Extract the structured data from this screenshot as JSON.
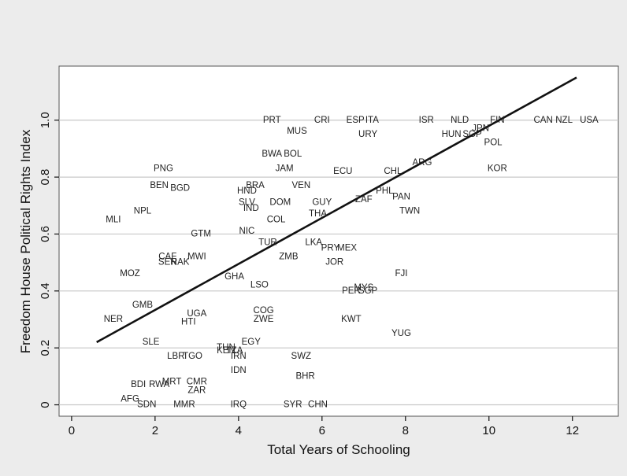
{
  "chart_data": {
    "type": "scatter",
    "title": "",
    "xlabel": "Total Years of Schooling",
    "ylabel": "Freedom House Political Rights Index",
    "xlim": [
      -0.3,
      13.1
    ],
    "ylim": [
      -0.04,
      1.19
    ],
    "xticks": [
      "0",
      "2",
      "4",
      "6",
      "8",
      "10",
      "12"
    ],
    "yticks": [
      "0",
      "0.2",
      "0.4",
      "0.6",
      "0.8",
      "1.0"
    ],
    "grid": true,
    "series": [
      {
        "points": [
          {
            "label": "PRT",
            "x": 4.8,
            "y": 1.0
          },
          {
            "label": "CRI",
            "x": 6.0,
            "y": 1.0
          },
          {
            "label": "ESP",
            "x": 6.8,
            "y": 1.0
          },
          {
            "label": "ITA",
            "x": 7.2,
            "y": 1.0
          },
          {
            "label": "ISR",
            "x": 8.5,
            "y": 1.0
          },
          {
            "label": "NLD",
            "x": 9.3,
            "y": 1.0
          },
          {
            "label": "FIN",
            "x": 10.2,
            "y": 1.0
          },
          {
            "label": "CAN",
            "x": 11.3,
            "y": 1.0
          },
          {
            "label": "NZL",
            "x": 11.8,
            "y": 1.0
          },
          {
            "label": "USA",
            "x": 12.4,
            "y": 1.0
          },
          {
            "label": "MUS",
            "x": 5.4,
            "y": 0.96
          },
          {
            "label": "URY",
            "x": 7.1,
            "y": 0.95
          },
          {
            "label": "HUN",
            "x": 9.1,
            "y": 0.95
          },
          {
            "label": "SGP",
            "x": 9.6,
            "y": 0.95
          },
          {
            "label": "JPN",
            "x": 9.8,
            "y": 0.97
          },
          {
            "label": "POL",
            "x": 10.1,
            "y": 0.92
          },
          {
            "label": "BWA",
            "x": 4.8,
            "y": 0.88
          },
          {
            "label": "BOL",
            "x": 5.3,
            "y": 0.88
          },
          {
            "label": "PNG",
            "x": 2.2,
            "y": 0.83
          },
          {
            "label": "JAM",
            "x": 5.1,
            "y": 0.83
          },
          {
            "label": "ECU",
            "x": 6.5,
            "y": 0.82
          },
          {
            "label": "CHL",
            "x": 7.7,
            "y": 0.82
          },
          {
            "label": "ARG",
            "x": 8.4,
            "y": 0.85
          },
          {
            "label": "KOR",
            "x": 10.2,
            "y": 0.83
          },
          {
            "label": "BEN",
            "x": 2.1,
            "y": 0.77
          },
          {
            "label": "BGD",
            "x": 2.6,
            "y": 0.76
          },
          {
            "label": "BRA",
            "x": 4.4,
            "y": 0.77
          },
          {
            "label": "VEN",
            "x": 5.5,
            "y": 0.77
          },
          {
            "label": "PHL",
            "x": 7.5,
            "y": 0.75
          },
          {
            "label": "HND",
            "x": 4.2,
            "y": 0.75
          },
          {
            "label": "PAN",
            "x": 7.9,
            "y": 0.73
          },
          {
            "label": "SLV",
            "x": 4.2,
            "y": 0.71
          },
          {
            "label": "DOM",
            "x": 5.0,
            "y": 0.71
          },
          {
            "label": "GUY",
            "x": 6.0,
            "y": 0.71
          },
          {
            "label": "ZAF",
            "x": 7.0,
            "y": 0.72
          },
          {
            "label": "IND",
            "x": 4.3,
            "y": 0.69
          },
          {
            "label": "NPL",
            "x": 1.7,
            "y": 0.68
          },
          {
            "label": "TWN",
            "x": 8.1,
            "y": 0.68
          },
          {
            "label": "THA",
            "x": 5.9,
            "y": 0.67
          },
          {
            "label": "MLI",
            "x": 1.0,
            "y": 0.65
          },
          {
            "label": "COL",
            "x": 4.9,
            "y": 0.65
          },
          {
            "label": "NIC",
            "x": 4.2,
            "y": 0.61
          },
          {
            "label": "GTM",
            "x": 3.1,
            "y": 0.6
          },
          {
            "label": "TUR",
            "x": 4.7,
            "y": 0.57
          },
          {
            "label": "LKA",
            "x": 5.8,
            "y": 0.57
          },
          {
            "label": "PRY",
            "x": 6.2,
            "y": 0.55
          },
          {
            "label": "MEX",
            "x": 6.6,
            "y": 0.55
          },
          {
            "label": "CAF",
            "x": 2.3,
            "y": 0.52
          },
          {
            "label": "MWI",
            "x": 3.0,
            "y": 0.52
          },
          {
            "label": "SEN",
            "x": 2.3,
            "y": 0.5
          },
          {
            "label": "RAK",
            "x": 2.6,
            "y": 0.5
          },
          {
            "label": "ZMB",
            "x": 5.2,
            "y": 0.52
          },
          {
            "label": "JOR",
            "x": 6.3,
            "y": 0.5
          },
          {
            "label": "MOZ",
            "x": 1.4,
            "y": 0.46
          },
          {
            "label": "FJI",
            "x": 7.9,
            "y": 0.46
          },
          {
            "label": "GHA",
            "x": 3.9,
            "y": 0.45
          },
          {
            "label": "LSO",
            "x": 4.5,
            "y": 0.42
          },
          {
            "label": "MYS",
            "x": 7.0,
            "y": 0.41
          },
          {
            "label": "PER",
            "x": 6.7,
            "y": 0.4
          },
          {
            "label": "SGP",
            "x": 7.1,
            "y": 0.4
          },
          {
            "label": "GMB",
            "x": 1.7,
            "y": 0.35
          },
          {
            "label": "COG",
            "x": 4.6,
            "y": 0.33
          },
          {
            "label": "UGA",
            "x": 3.0,
            "y": 0.32
          },
          {
            "label": "ZWE",
            "x": 4.6,
            "y": 0.3
          },
          {
            "label": "NER",
            "x": 1.0,
            "y": 0.3
          },
          {
            "label": "KWT",
            "x": 6.7,
            "y": 0.3
          },
          {
            "label": "HTI",
            "x": 2.8,
            "y": 0.29
          },
          {
            "label": "YUG",
            "x": 7.9,
            "y": 0.25
          },
          {
            "label": "SLE",
            "x": 1.9,
            "y": 0.22
          },
          {
            "label": "EGY",
            "x": 4.3,
            "y": 0.22
          },
          {
            "label": "TUN",
            "x": 3.7,
            "y": 0.2
          },
          {
            "label": "KEN",
            "x": 3.7,
            "y": 0.19
          },
          {
            "label": "TZA",
            "x": 3.9,
            "y": 0.19
          },
          {
            "label": "LBR",
            "x": 2.5,
            "y": 0.17
          },
          {
            "label": "TGO",
            "x": 2.9,
            "y": 0.17
          },
          {
            "label": "IRN",
            "x": 4.0,
            "y": 0.17
          },
          {
            "label": "SWZ",
            "x": 5.5,
            "y": 0.17
          },
          {
            "label": "IDN",
            "x": 4.0,
            "y": 0.12
          },
          {
            "label": "BHR",
            "x": 5.6,
            "y": 0.1
          },
          {
            "label": "MRT",
            "x": 2.4,
            "y": 0.08
          },
          {
            "label": "CMR",
            "x": 3.0,
            "y": 0.08
          },
          {
            "label": "BDI",
            "x": 1.6,
            "y": 0.07
          },
          {
            "label": "RWA",
            "x": 2.1,
            "y": 0.07
          },
          {
            "label": "ZAR",
            "x": 3.0,
            "y": 0.05
          },
          {
            "label": "AFG",
            "x": 1.4,
            "y": 0.02
          },
          {
            "label": "SDN",
            "x": 1.8,
            "y": 0.0
          },
          {
            "label": "MMR",
            "x": 2.7,
            "y": 0.0
          },
          {
            "label": "IRQ",
            "x": 4.0,
            "y": 0.0
          },
          {
            "label": "SYR",
            "x": 5.3,
            "y": 0.0
          },
          {
            "label": "CHN",
            "x": 5.9,
            "y": 0.0
          }
        ]
      }
    ],
    "fit_line": {
      "x": [
        0.6,
        12.1
      ],
      "y": [
        0.22,
        1.15
      ]
    },
    "colors": {
      "background": "#ececec",
      "plot_bg": "#ffffff",
      "grid": "#c8c8c8",
      "line": "#111111",
      "text": "#222222"
    }
  }
}
